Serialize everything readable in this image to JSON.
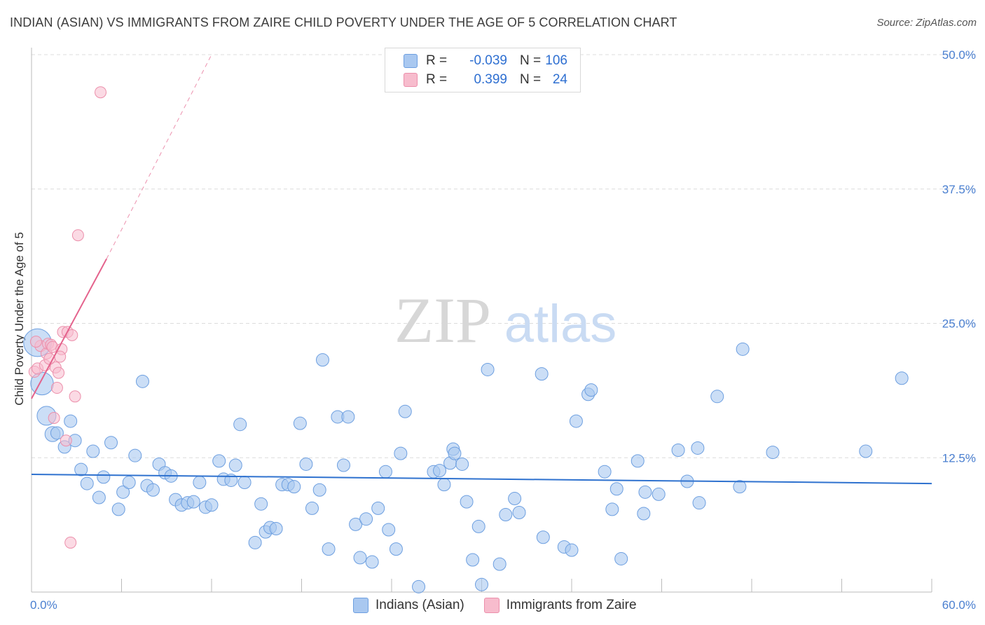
{
  "title": "INDIAN (ASIAN) VS IMMIGRANTS FROM ZAIRE CHILD POVERTY UNDER THE AGE OF 5 CORRELATION CHART",
  "source": "Source: ZipAtlas.com",
  "watermark": {
    "zip": "ZIP",
    "atlas": "atlas"
  },
  "colors": {
    "blue_fill": "#a9c8f0",
    "blue_stroke": "#6d9fe0",
    "blue_line": "#2f72cf",
    "pink_fill": "#f7bccd",
    "pink_stroke": "#ec8fab",
    "pink_line": "#e4628c",
    "grid": "#dcdcdc",
    "tick_text": "#4a7fd0"
  },
  "legend": {
    "r_label": "R =",
    "n_label": "N =",
    "series": [
      {
        "r": "-0.039",
        "n": "106"
      },
      {
        "r": "0.399",
        "n": "24"
      }
    ]
  },
  "chart_data": {
    "type": "scatter",
    "title": "INDIAN (ASIAN) VS IMMIGRANTS FROM ZAIRE CHILD POVERTY UNDER THE AGE OF 5 CORRELATION CHART",
    "xlabel": "",
    "ylabel": "Child Poverty Under the Age of 5",
    "xlim": [
      0,
      60
    ],
    "ylim": [
      0,
      50
    ],
    "x_tick_labels": [
      "0.0%",
      "60.0%"
    ],
    "y_ticks": [
      12.5,
      25.0,
      37.5,
      50.0
    ],
    "y_tick_labels": [
      "12.5%",
      "25.0%",
      "37.5%",
      "50.0%"
    ],
    "grid": true,
    "legend_placement": "top-center",
    "series": [
      {
        "name": "Indians (Asian)",
        "trend": {
          "x0": 0,
          "y0": 10.95,
          "x1": 60,
          "y1": 10.1
        },
        "points": [
          [
            0.4,
            23.2,
            2.2
          ],
          [
            0.7,
            19.4,
            1.8
          ],
          [
            1.0,
            16.4,
            1.5
          ],
          [
            1.4,
            14.7,
            1.2
          ],
          [
            1.7,
            14.8,
            1.0
          ],
          [
            2.2,
            13.5,
            1.0
          ],
          [
            2.6,
            15.9,
            1.0
          ],
          [
            2.9,
            14.1,
            1.0
          ],
          [
            3.3,
            11.4,
            1.0
          ],
          [
            3.7,
            10.1,
            1.0
          ],
          [
            4.1,
            13.1,
            1.0
          ],
          [
            4.5,
            8.8,
            1.0
          ],
          [
            4.8,
            10.7,
            1.0
          ],
          [
            5.3,
            13.9,
            1.0
          ],
          [
            5.8,
            7.7,
            1.0
          ],
          [
            6.1,
            9.3,
            1.0
          ],
          [
            6.5,
            10.2,
            1.0
          ],
          [
            6.9,
            12.7,
            1.0
          ],
          [
            7.4,
            19.6,
            1.0
          ],
          [
            7.7,
            9.9,
            1.0
          ],
          [
            8.1,
            9.5,
            1.0
          ],
          [
            8.5,
            11.9,
            1.0
          ],
          [
            8.9,
            11.1,
            1.0
          ],
          [
            9.3,
            10.8,
            1.0
          ],
          [
            9.6,
            8.6,
            1.0
          ],
          [
            10.0,
            8.1,
            1.0
          ],
          [
            10.4,
            8.3,
            1.0
          ],
          [
            10.8,
            8.4,
            1.0
          ],
          [
            11.2,
            10.2,
            1.0
          ],
          [
            11.6,
            7.9,
            1.0
          ],
          [
            12.0,
            8.1,
            1.0
          ],
          [
            12.5,
            12.2,
            1.0
          ],
          [
            12.8,
            10.5,
            1.0
          ],
          [
            13.3,
            10.4,
            1.0
          ],
          [
            13.6,
            11.8,
            1.0
          ],
          [
            13.9,
            15.6,
            1.0
          ],
          [
            14.2,
            10.2,
            1.0
          ],
          [
            14.9,
            4.6,
            1.0
          ],
          [
            15.3,
            8.2,
            1.0
          ],
          [
            15.6,
            5.6,
            1.0
          ],
          [
            15.9,
            6.0,
            1.0
          ],
          [
            16.3,
            5.9,
            1.0
          ],
          [
            16.7,
            10.0,
            1.0
          ],
          [
            17.1,
            10.0,
            1.0
          ],
          [
            17.5,
            9.8,
            1.0
          ],
          [
            17.9,
            15.7,
            1.0
          ],
          [
            18.3,
            11.9,
            1.0
          ],
          [
            18.7,
            7.8,
            1.0
          ],
          [
            19.2,
            9.5,
            1.0
          ],
          [
            19.4,
            21.6,
            1.0
          ],
          [
            19.8,
            4.0,
            1.0
          ],
          [
            20.4,
            16.3,
            1.0
          ],
          [
            20.8,
            11.8,
            1.0
          ],
          [
            21.1,
            16.3,
            1.0
          ],
          [
            21.6,
            6.3,
            1.0
          ],
          [
            21.9,
            3.2,
            1.0
          ],
          [
            22.3,
            6.8,
            1.0
          ],
          [
            22.7,
            2.8,
            1.0
          ],
          [
            23.1,
            7.8,
            1.0
          ],
          [
            23.6,
            11.2,
            1.0
          ],
          [
            23.8,
            5.8,
            1.0
          ],
          [
            24.3,
            4.0,
            1.0
          ],
          [
            24.6,
            12.9,
            1.0
          ],
          [
            24.9,
            16.8,
            1.0
          ],
          [
            25.8,
            0.5,
            1.0
          ],
          [
            26.8,
            11.2,
            1.0
          ],
          [
            27.2,
            11.3,
            1.0
          ],
          [
            27.5,
            10.0,
            1.0
          ],
          [
            27.9,
            12.0,
            1.0
          ],
          [
            28.1,
            13.3,
            1.0
          ],
          [
            28.2,
            12.9,
            1.0
          ],
          [
            28.7,
            11.9,
            1.0
          ],
          [
            29.0,
            8.4,
            1.0
          ],
          [
            29.4,
            3.0,
            1.0
          ],
          [
            29.8,
            6.1,
            1.0
          ],
          [
            30.0,
            0.7,
            1.0
          ],
          [
            30.4,
            20.7,
            1.0
          ],
          [
            31.2,
            2.6,
            1.0
          ],
          [
            31.6,
            7.2,
            1.0
          ],
          [
            32.2,
            8.7,
            1.0
          ],
          [
            32.5,
            7.4,
            1.0
          ],
          [
            34.0,
            20.3,
            1.0
          ],
          [
            34.1,
            5.1,
            1.0
          ],
          [
            35.5,
            4.2,
            1.0
          ],
          [
            36.0,
            3.9,
            1.0
          ],
          [
            36.3,
            15.9,
            1.0
          ],
          [
            37.1,
            18.4,
            1.0
          ],
          [
            37.3,
            18.8,
            1.0
          ],
          [
            38.2,
            11.2,
            1.0
          ],
          [
            38.7,
            7.7,
            1.0
          ],
          [
            39.0,
            9.6,
            1.0
          ],
          [
            39.3,
            3.1,
            1.0
          ],
          [
            40.4,
            12.2,
            1.0
          ],
          [
            40.8,
            7.3,
            1.0
          ],
          [
            40.9,
            9.3,
            1.0
          ],
          [
            41.8,
            9.1,
            1.0
          ],
          [
            43.1,
            13.2,
            1.0
          ],
          [
            43.7,
            10.3,
            1.0
          ],
          [
            44.4,
            13.4,
            1.0
          ],
          [
            44.5,
            8.3,
            1.0
          ],
          [
            45.7,
            18.2,
            1.0
          ],
          [
            47.2,
            9.8,
            1.0
          ],
          [
            47.4,
            22.6,
            1.0
          ],
          [
            49.4,
            13.0,
            1.0
          ],
          [
            55.6,
            13.1,
            1.0
          ],
          [
            58.0,
            19.9,
            1.0
          ]
        ]
      },
      {
        "name": "Immigrants from Zaire",
        "trend": {
          "x0": 0,
          "y0": 18.0,
          "x1": 5.0,
          "y1": 31.0,
          "dashed_to": {
            "x": 12.0,
            "y": 50.0
          }
        },
        "points": [
          [
            0.2,
            20.5
          ],
          [
            0.4,
            20.8
          ],
          [
            0.6,
            22.9
          ],
          [
            0.9,
            21.1
          ],
          [
            1.0,
            22.2
          ],
          [
            1.1,
            23.1
          ],
          [
            1.3,
            23.0
          ],
          [
            1.4,
            22.8
          ],
          [
            1.5,
            16.2
          ],
          [
            1.6,
            20.9
          ],
          [
            1.7,
            19.0
          ],
          [
            1.8,
            20.4
          ],
          [
            2.0,
            22.6
          ],
          [
            2.1,
            24.2
          ],
          [
            2.3,
            14.1
          ],
          [
            2.4,
            24.2
          ],
          [
            2.6,
            4.6
          ],
          [
            2.7,
            23.9
          ],
          [
            2.9,
            18.2
          ],
          [
            3.1,
            33.2
          ],
          [
            4.6,
            46.5
          ],
          [
            0.3,
            23.3
          ],
          [
            1.2,
            21.7
          ],
          [
            1.9,
            21.9
          ]
        ]
      }
    ]
  },
  "bottom_legend": [
    {
      "label": "Indians (Asian)"
    },
    {
      "label": "Immigrants from Zaire"
    }
  ]
}
